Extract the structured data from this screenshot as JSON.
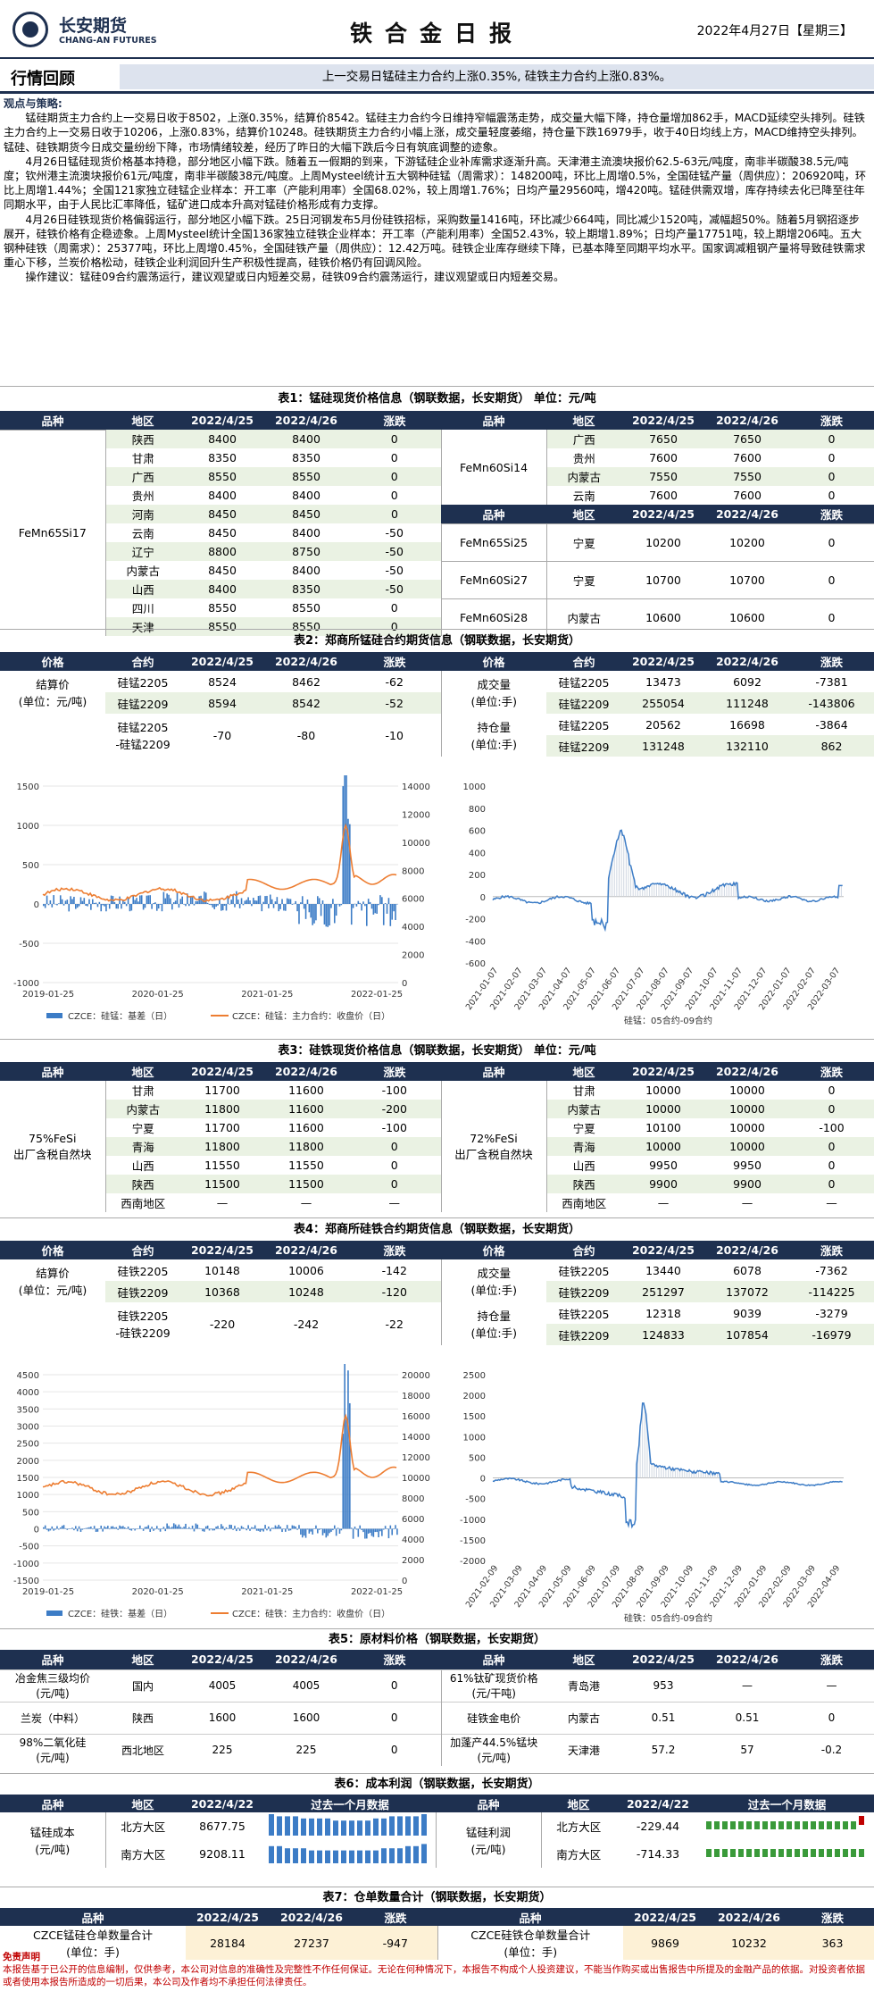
{
  "header": {
    "company_cn": "长安期货",
    "company_en": "CHANG-AN FUTURES",
    "title": "铁合金日报",
    "date": "2022年4月27日【星期三】"
  },
  "market": {
    "label": "行情回顾",
    "summary": "上一交易日锰硅主力合约上涨0.35%, 硅铁主力合约上涨0.83%。"
  },
  "views": {
    "heading": "观点与策略:",
    "paragraphs": [
      "锰硅期货主力合约上一交易日收于8502，上涨0.35%，结算价8542。锰硅主力合约今日维持窄幅震荡走势，成交量大幅下降，持仓量增加862手，MACD延续空头排列。硅铁主力合约上一交易日收于10206，上涨0.83%，结算价10248。硅铁期货主力合约小幅上涨，成交量轻度萎缩，持仓量下跌16979手，收于40日均线上方，MACD维持空头排列。锰硅、硅铁期货今日成交量纷纷下降，市场情绪较差，经历了昨日的大幅下跌后今日有筑底调整的迹象。",
      "4月26日锰硅现货价格基本持稳，部分地区小幅下跌。随着五一假期的到来，下游锰硅企业补库需求逐渐升高。天津港主流澳块报价62.5-63元/吨度，南非半碳酸38.5元/吨度；钦州港主流澳块报价61元/吨度，南非半碳酸38元/吨度。上周Mysteel统计五大钢种硅锰（周需求）：148200吨，环比上周增0.5%，全国硅锰产量（周供应）：206920吨，环比上周增1.44%；全国121家独立硅锰企业样本：开工率（产能利用率）全国68.02%，较上周增1.76%；日均产量29560吨，增420吨。锰硅供需双增，库存持续去化已降至往年同期水平，由于人民比汇率降低，锰矿进口成本升高对锰硅价格形成有力支撑。",
      "4月26日硅铁现货价格偏弱运行，部分地区小幅下跌。25日河钢发布5月份硅铁招标，采购数量1416吨，环比减少664吨，同比减少1520吨，减幅超50%。随着5月钢招逐步展开，硅铁价格有企稳迹象。上周Mysteel统计全国136家独立硅铁企业样本：开工率（产能利用率）全国52.43%，较上期增1.89%；日均产量17751吨，较上期增206吨。五大钢种硅铁（周需求）：25377吨，环比上周增0.45%，全国硅铁产量（周供应）：12.42万吨。硅铁企业库存继续下降，已基本降至同期平均水平。国家调减粗钢产量将导致硅铁需求重心下移，兰炭价格松动，硅铁企业利润回升生产积极性提高，硅铁价格仍有回调风险。",
      "操作建议：锰硅09合约震荡运行，建议观望或日内短差交易，硅铁09合约震荡运行，建议观望或日内短差交易。"
    ]
  },
  "t1": {
    "caption": "表1：锰硅现货价格信息（钢联数据，长安期货） 单位：元/吨",
    "head": [
      "品种",
      "地区",
      "2022/4/25",
      "2022/4/26",
      "涨跌"
    ],
    "left_variety": "FeMn65Si17",
    "left": [
      [
        "陕西",
        "8400",
        "8400",
        "0"
      ],
      [
        "甘肃",
        "8350",
        "8350",
        "0"
      ],
      [
        "广西",
        "8550",
        "8550",
        "0"
      ],
      [
        "贵州",
        "8400",
        "8400",
        "0"
      ],
      [
        "河南",
        "8450",
        "8450",
        "0"
      ],
      [
        "云南",
        "8450",
        "8400",
        "-50"
      ],
      [
        "辽宁",
        "8800",
        "8750",
        "-50"
      ],
      [
        "内蒙古",
        "8450",
        "8400",
        "-50"
      ],
      [
        "山西",
        "8400",
        "8350",
        "-50"
      ],
      [
        "四川",
        "8550",
        "8550",
        "0"
      ],
      [
        "天津",
        "8550",
        "8550",
        "0"
      ]
    ],
    "r1_variety": "FeMn60Si14",
    "r1": [
      [
        "广西",
        "7650",
        "7650",
        "0"
      ],
      [
        "贵州",
        "7600",
        "7600",
        "0"
      ],
      [
        "内蒙古",
        "7550",
        "7550",
        "0"
      ],
      [
        "云南",
        "7600",
        "7600",
        "0"
      ]
    ],
    "r2": [
      [
        "FeMn65Si25",
        "宁夏",
        "10200",
        "10200",
        "0"
      ],
      [
        "FeMn60Si27",
        "宁夏",
        "10700",
        "10700",
        "0"
      ],
      [
        "FeMn60Si28",
        "内蒙古",
        "10600",
        "10600",
        "0"
      ]
    ]
  },
  "t2": {
    "caption": "表2：郑商所锰硅合约期货信息（钢联数据，长安期货）",
    "head": [
      "价格",
      "合约",
      "2022/4/25",
      "2022/4/26",
      "涨跌"
    ],
    "settle_label": "结算价\n(单位：元/吨)",
    "rows": [
      [
        "硅锰2205",
        "8524",
        "8462",
        "-62"
      ],
      [
        "硅锰2209",
        "8594",
        "8542",
        "-52"
      ]
    ],
    "spread": [
      "硅锰2205\n-硅锰2209",
      "-70",
      "-80",
      "-10"
    ],
    "vol_label": "成交量\n(单位:手)",
    "vol": [
      [
        "硅锰2205",
        "13473",
        "6092",
        "-7381"
      ],
      [
        "硅锰2209",
        "255054",
        "111248",
        "-143806"
      ]
    ],
    "oi_label": "持仓量\n(单位:手)",
    "oi": [
      [
        "硅锰2205",
        "20562",
        "16698",
        "-3864"
      ],
      [
        "硅锰2209",
        "131248",
        "132110",
        "862"
      ]
    ]
  },
  "chart1": {
    "left_ticks": [
      "1500",
      "1000",
      "500",
      "0",
      "-500",
      "-1000"
    ],
    "right_ticks": [
      "14000",
      "12000",
      "10000",
      "8000",
      "6000",
      "4000",
      "2000",
      "0"
    ],
    "x_ticks": [
      "2019-01-25",
      "2020-01-25",
      "2021-01-25",
      "2022-01-25"
    ],
    "legend": [
      "CZCE：硅锰：基差（日）",
      "CZCE：硅锰：主力合约：收盘价（日）"
    ],
    "colors": [
      "#3c7cc6",
      "#ed7d31"
    ]
  },
  "chart2": {
    "y_ticks": [
      "1000",
      "800",
      "600",
      "400",
      "200",
      "0",
      "-200",
      "-400",
      "-600"
    ],
    "x_ticks": [
      "2021-01-07",
      "2021-02-07",
      "2021-03-07",
      "2021-04-07",
      "2021-05-07",
      "2021-06-07",
      "2021-07-07",
      "2021-08-07",
      "2021-09-07",
      "2021-10-07",
      "2021-11-07",
      "2021-12-07",
      "2022-01-07",
      "2022-02-07",
      "2022-03-07"
    ],
    "legend": "硅锰：05合约-09合约"
  },
  "t3": {
    "caption": "表3：硅铁现货价格信息（钢联数据，长安期货） 单位：元/吨",
    "head": [
      "品种",
      "地区",
      "2022/4/25",
      "2022/4/26",
      "涨跌"
    ],
    "left_variety": "75%FeSi\n出厂含税自然块",
    "left": [
      [
        "甘肃",
        "11700",
        "11600",
        "-100"
      ],
      [
        "内蒙古",
        "11800",
        "11600",
        "-200"
      ],
      [
        "宁夏",
        "11700",
        "11600",
        "-100"
      ],
      [
        "青海",
        "11800",
        "11800",
        "0"
      ],
      [
        "山西",
        "11550",
        "11550",
        "0"
      ],
      [
        "陕西",
        "11500",
        "11500",
        "0"
      ],
      [
        "西南地区",
        "—",
        "—",
        "—"
      ]
    ],
    "right_variety": "72%FeSi\n出厂含税自然块",
    "right": [
      [
        "甘肃",
        "10000",
        "10000",
        "0"
      ],
      [
        "内蒙古",
        "10000",
        "10000",
        "0"
      ],
      [
        "宁夏",
        "10100",
        "10000",
        "-100"
      ],
      [
        "青海",
        "10000",
        "10000",
        "0"
      ],
      [
        "山西",
        "9950",
        "9950",
        "0"
      ],
      [
        "陕西",
        "9900",
        "9900",
        "0"
      ],
      [
        "西南地区",
        "—",
        "—",
        "—"
      ]
    ]
  },
  "t4": {
    "caption": "表4：郑商所硅铁合约期货信息（钢联数据，长安期货）",
    "head": [
      "价格",
      "合约",
      "2022/4/25",
      "2022/4/26",
      "涨跌"
    ],
    "settle_label": "结算价\n(单位：元/吨)",
    "rows": [
      [
        "硅铁2205",
        "10148",
        "10006",
        "-142"
      ],
      [
        "硅铁2209",
        "10368",
        "10248",
        "-120"
      ]
    ],
    "spread": [
      "硅铁2205\n-硅铁2209",
      "-220",
      "-242",
      "-22"
    ],
    "vol_label": "成交量\n(单位:手)",
    "vol": [
      [
        "硅铁2205",
        "13440",
        "6078",
        "-7362"
      ],
      [
        "硅铁2209",
        "251297",
        "137072",
        "-114225"
      ]
    ],
    "oi_label": "持仓量\n(单位:手)",
    "oi": [
      [
        "硅铁2205",
        "12318",
        "9039",
        "-3279"
      ],
      [
        "硅铁2209",
        "124833",
        "107854",
        "-16979"
      ]
    ]
  },
  "chart3": {
    "left_ticks": [
      "4500",
      "4000",
      "3500",
      "3000",
      "2500",
      "2000",
      "1500",
      "1000",
      "500",
      "0",
      "-500",
      "-1000",
      "-1500"
    ],
    "right_ticks": [
      "20000",
      "18000",
      "16000",
      "14000",
      "12000",
      "10000",
      "8000",
      "6000",
      "4000",
      "2000",
      "0"
    ],
    "x_ticks": [
      "2019-01-25",
      "2020-01-25",
      "2021-01-25",
      "2022-01-25"
    ],
    "legend": [
      "CZCE：硅铁：基差（日）",
      "CZCE：硅铁：主力合约：收盘价（日）"
    ],
    "colors": [
      "#3c7cc6",
      "#ed7d31"
    ]
  },
  "chart4": {
    "y_ticks": [
      "2500",
      "2000",
      "1500",
      "1000",
      "500",
      "0",
      "-500",
      "-1000",
      "-1500",
      "-2000"
    ],
    "x_ticks": [
      "2021-02-09",
      "2021-03-09",
      "2021-04-09",
      "2021-05-09",
      "2021-06-09",
      "2021-07-09",
      "2021-08-09",
      "2021-09-09",
      "2021-10-09",
      "2021-11-09",
      "2021-12-09",
      "2022-01-09",
      "2022-02-09",
      "2022-03-09",
      "2022-04-09"
    ],
    "legend": "硅铁：05合约-09合约"
  },
  "t5": {
    "caption": "表5：原材料价格（钢联数据，长安期货）",
    "head": [
      "品种",
      "地区",
      "2022/4/25",
      "2022/4/26",
      "涨跌"
    ],
    "rows": [
      [
        "冶金焦三级均价\n(元/吨)",
        "国内",
        "4005",
        "4005",
        "0",
        "61%钛矿现货价格\n(元/干吨)",
        "青岛港",
        "953",
        "—",
        "—"
      ],
      [
        "兰炭（中料）",
        "陕西",
        "1600",
        "1600",
        "0",
        "硅铁金电价",
        "内蒙古",
        "0.51",
        "0.51",
        "0"
      ],
      [
        "98%二氧化硅\n(元/吨)",
        "西北地区",
        "225",
        "225",
        "0",
        "加蓬产44.5%锰块\n(元/吨)",
        "天津港",
        "57.2",
        "57",
        "-0.2"
      ]
    ]
  },
  "t6": {
    "caption": "表6：成本利润（钢联数据，长安期货）",
    "head_l": [
      "品种",
      "地区",
      "2022/4/22",
      "过去一个月数据"
    ],
    "head_r": [
      "品种",
      "地区",
      "2022/4/22",
      "过去一个月数据"
    ],
    "left_label": "锰硅成本\n(元/吨)",
    "left_rows": [
      [
        "北方大区",
        "8677.75"
      ],
      [
        "南方大区",
        "9208.11"
      ]
    ],
    "right_label": "锰硅利润\n(元/吨)",
    "right_rows": [
      [
        "北方大区",
        "-229.44"
      ],
      [
        "南方大区",
        "-714.33"
      ]
    ]
  },
  "t7": {
    "caption": "表7：仓单数量合计（钢联数据，长安期货）",
    "head": [
      "品种",
      "2022/4/25",
      "2022/4/26",
      "涨跌"
    ],
    "left": [
      "CZCE锰硅仓单数量合计\n(单位：手)",
      "28184",
      "27237",
      "-947"
    ],
    "right": [
      "CZCE硅铁仓单数量合计\n(单位：手)",
      "9869",
      "10232",
      "363"
    ]
  },
  "disclaimer": {
    "title": "免责声明",
    "text": "本报告基于已公开的信息编制，仅供参考，本公司对信息的准确性及完整性不作任何保证。无论在何种情况下，本报告不构成个人投资建议，不能当作购买或出售报告中所提及的金融产品的依据。对投资者依据或者使用本报告所造成的一切后果，本公司及作者均不承担任何法律责任。"
  }
}
